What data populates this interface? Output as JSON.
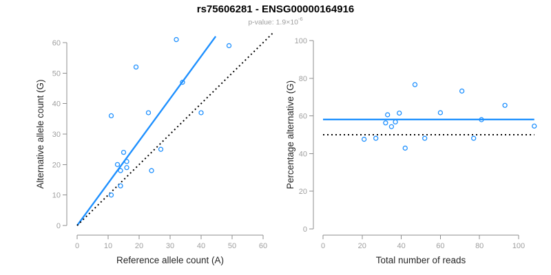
{
  "header": {
    "title": "rs75606281 - ENSG00000164916",
    "pvalue_label": "p-value:",
    "pvalue_base": "1.9×10",
    "pvalue_exponent": "-6"
  },
  "colors": {
    "accent_blue": "#1E90FF",
    "dotted_line": "#000000",
    "axis_line": "#8c8c8c",
    "tick_label": "#9e9e9e",
    "axis_title": "#262626",
    "title": "#000000",
    "subtitle": "#9e9e9e"
  },
  "chart_data": [
    {
      "id": "ref-vs-alt",
      "type": "scatter",
      "title": "rs75606281 - ENSG00000164916",
      "subtitle": "p-value: 1.9×10^-6",
      "xlabel": "Reference allele count (A)",
      "ylabel": "Alternative allele count (G)",
      "xticks": [
        0,
        10,
        20,
        30,
        40,
        50,
        60
      ],
      "yticks": [
        0,
        10,
        20,
        30,
        40,
        50,
        60
      ],
      "xlim": [
        0,
        63
      ],
      "ylim": [
        0,
        63
      ],
      "grid": false,
      "points": [
        [
          11,
          36
        ],
        [
          19,
          52
        ],
        [
          23,
          37
        ],
        [
          32,
          61
        ],
        [
          34,
          47
        ],
        [
          40,
          37
        ],
        [
          49,
          59
        ],
        [
          15,
          24
        ],
        [
          16,
          21
        ],
        [
          13,
          20
        ],
        [
          16,
          19
        ],
        [
          14,
          18
        ],
        [
          14,
          13
        ],
        [
          11,
          10
        ],
        [
          24,
          18
        ],
        [
          27,
          25
        ]
      ],
      "lines": [
        {
          "name": "fit-line",
          "kind": "slope",
          "slope": 1.388,
          "intercept": 0,
          "x_range": [
            0,
            44.7
          ],
          "style": "solid",
          "color": "blue"
        },
        {
          "name": "identity-line",
          "kind": "slope",
          "slope": 1.0,
          "intercept": 0,
          "x_range": [
            0,
            63
          ],
          "style": "dotted",
          "color": "black"
        }
      ]
    },
    {
      "id": "reads-vs-percentage",
      "type": "scatter",
      "title": "rs75606281 - ENSG00000164916",
      "subtitle": "p-value: 1.9×10^-6",
      "xlabel": "Total number of reads",
      "ylabel": "Percentage alternative (G)",
      "xticks": [
        0,
        20,
        40,
        60,
        80,
        100
      ],
      "yticks": [
        0,
        20,
        40,
        60,
        80,
        100
      ],
      "xlim": [
        0,
        112
      ],
      "ylim": [
        0,
        103
      ],
      "grid": false,
      "points": [
        [
          47,
          76.6
        ],
        [
          71,
          73.2
        ],
        [
          60,
          61.7
        ],
        [
          93,
          65.6
        ],
        [
          81,
          58.0
        ],
        [
          77,
          48.1
        ],
        [
          108,
          54.6
        ],
        [
          39,
          61.5
        ],
        [
          37,
          56.8
        ],
        [
          33,
          60.6
        ],
        [
          35,
          54.3
        ],
        [
          32,
          56.3
        ],
        [
          27,
          48.1
        ],
        [
          21,
          47.6
        ],
        [
          42,
          42.9
        ],
        [
          52,
          48.1
        ]
      ],
      "lines": [
        {
          "name": "mean-line",
          "kind": "horizontal",
          "y": 58.1,
          "x_range": [
            0,
            108
          ],
          "style": "solid",
          "color": "blue"
        },
        {
          "name": "null-line",
          "kind": "horizontal",
          "y": 50,
          "x_range": [
            0,
            108
          ],
          "style": "dotted",
          "color": "black"
        }
      ]
    }
  ]
}
